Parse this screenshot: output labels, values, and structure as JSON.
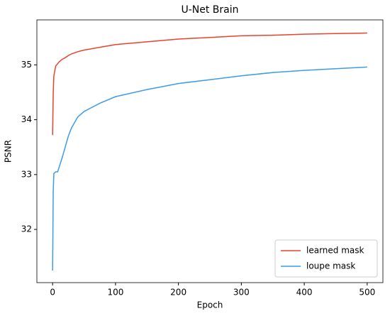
{
  "chart_data": {
    "type": "line",
    "title": "U-Net Brain",
    "x_label": "Epoch",
    "y_label": "PSNR",
    "x": [
      0,
      1,
      2,
      5,
      8,
      10,
      15,
      20,
      25,
      30,
      40,
      50,
      75,
      100,
      150,
      200,
      250,
      300,
      350,
      400,
      450,
      500
    ],
    "series": [
      {
        "name": "learned mask",
        "color": "#e8432c",
        "values": [
          33.72,
          34.5,
          34.8,
          34.98,
          35.02,
          35.05,
          35.1,
          35.13,
          35.17,
          35.2,
          35.24,
          35.27,
          35.32,
          35.37,
          35.42,
          35.47,
          35.5,
          35.53,
          35.54,
          35.56,
          35.57,
          35.58
        ]
      },
      {
        "name": "loupe mask",
        "color": "#3d9be9",
        "values": [
          31.25,
          32.7,
          33.02,
          33.05,
          33.05,
          33.12,
          33.3,
          33.5,
          33.7,
          33.85,
          34.05,
          34.15,
          34.3,
          34.42,
          34.55,
          34.66,
          34.73,
          34.8,
          34.86,
          34.9,
          34.93,
          34.96
        ]
      }
    ],
    "xlim": [
      -25,
      525
    ],
    "ylim": [
      31.03,
      35.82
    ],
    "xticks": [
      0,
      100,
      200,
      300,
      400,
      500
    ],
    "yticks": [
      32,
      33,
      34,
      35
    ],
    "legend": "lower right"
  }
}
